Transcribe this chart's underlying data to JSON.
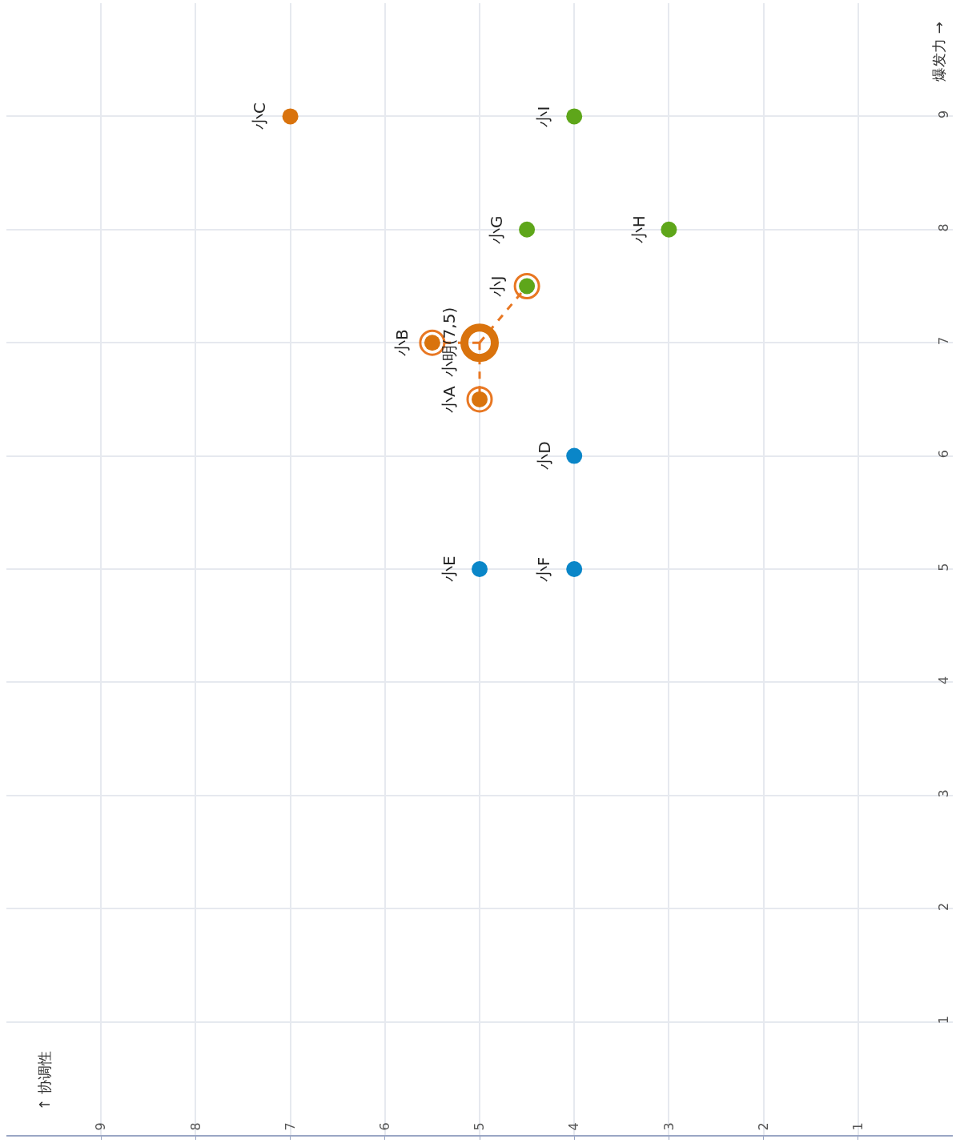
{
  "chart_data": {
    "type": "scatter",
    "xlim": [
      10,
      0
    ],
    "ylim": [
      0,
      10
    ],
    "xticks": [
      1,
      2,
      3,
      4,
      5,
      6,
      7,
      8,
      9
    ],
    "yticks": [
      1,
      2,
      3,
      4,
      5,
      6,
      7,
      8,
      9
    ],
    "grid": true,
    "marker": "circle",
    "series": [
      {
        "type": "line",
        "color": "#e87722",
        "line_style": "dashed",
        "marker": "none",
        "x": [
          5,
          5,
          null,
          5,
          5.5,
          null,
          5,
          4.5
        ],
        "values": [
          7,
          6.5,
          null,
          7,
          7,
          null,
          7,
          7.5
        ]
      },
      {
        "color": "#0a86c8",
        "x": [
          4,
          5,
          4
        ],
        "values": [
          6,
          5,
          5
        ]
      },
      {
        "color": "#5ea61a",
        "x": [
          4.5,
          3,
          4,
          4.5
        ],
        "values": [
          8,
          8,
          9,
          7.5
        ]
      },
      {
        "color": "#d9730d",
        "x": [
          7,
          5.5,
          5
        ],
        "values": [
          9,
          7,
          6.5
        ]
      },
      {
        "color": "#e87722",
        "x": [
          5.5,
          5,
          4.5
        ],
        "values": [
          7,
          6.5,
          7.5
        ]
      },
      {
        "color": "#d9730d",
        "x": [
          5
        ],
        "values": [
          7
        ]
      }
    ],
    "annotations": [
      "↑ 协调性",
      "爆发力 →",
      {
        "text": "小C",
        "x": 7,
        "y": 9
      },
      {
        "text": "小I",
        "x": 4,
        "y": 9
      },
      {
        "text": "小G",
        "x": 4.5,
        "y": 8
      },
      {
        "text": "小H",
        "x": 3,
        "y": 8
      },
      {
        "text": "小J",
        "x": 4.5,
        "y": 7.5
      },
      {
        "text": "小B",
        "x": 5.5,
        "y": 7
      },
      {
        "text": "小明(7,5)",
        "x": 5,
        "y": 7
      },
      {
        "text": "小A",
        "x": 5,
        "y": 6.5
      },
      {
        "text": "小D",
        "x": 4,
        "y": 6
      },
      {
        "text": "小E",
        "x": 5,
        "y": 5
      },
      {
        "text": "小F",
        "x": 4,
        "y": 5
      }
    ]
  }
}
